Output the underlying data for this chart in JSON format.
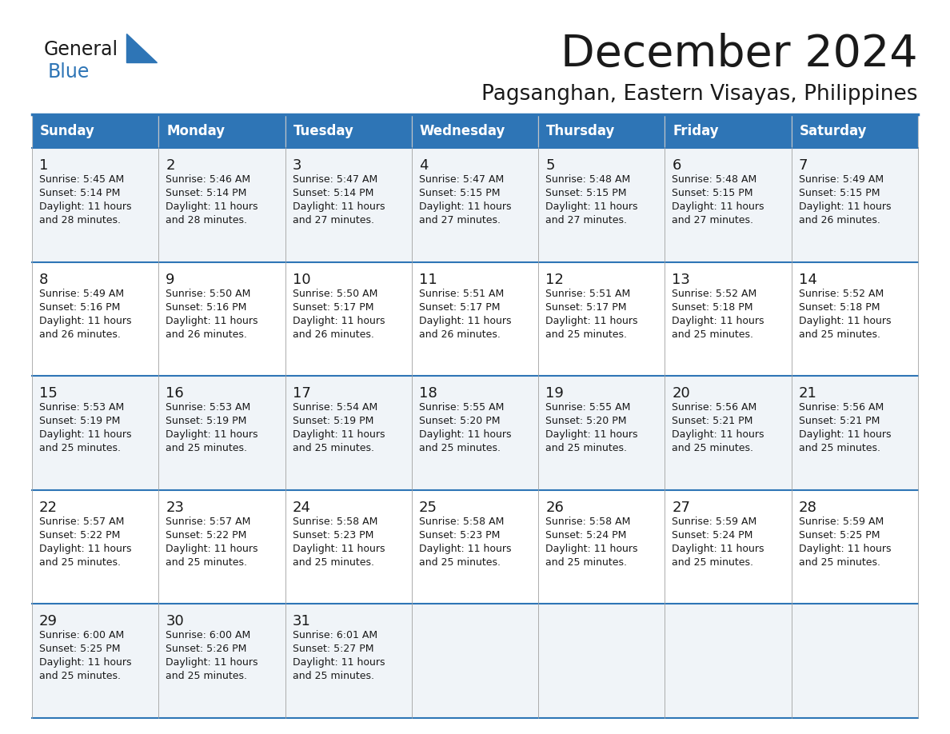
{
  "title": "December 2024",
  "subtitle": "Pagsanghan, Eastern Visayas, Philippines",
  "header_color": "#2E75B6",
  "header_text_color": "#FFFFFF",
  "text_color": "#1a1a1a",
  "days_of_week": [
    "Sunday",
    "Monday",
    "Tuesday",
    "Wednesday",
    "Thursday",
    "Friday",
    "Saturday"
  ],
  "logo_general_color": "#1a1a1a",
  "logo_blue_color": "#2E75B6",
  "calendar_data": [
    [
      {
        "day": "1",
        "sunrise": "5:45 AM",
        "sunset": "5:14 PM",
        "daylight_h": "11 hours",
        "daylight_m": "and 28 minutes."
      },
      {
        "day": "2",
        "sunrise": "5:46 AM",
        "sunset": "5:14 PM",
        "daylight_h": "11 hours",
        "daylight_m": "and 28 minutes."
      },
      {
        "day": "3",
        "sunrise": "5:47 AM",
        "sunset": "5:14 PM",
        "daylight_h": "11 hours",
        "daylight_m": "and 27 minutes."
      },
      {
        "day": "4",
        "sunrise": "5:47 AM",
        "sunset": "5:15 PM",
        "daylight_h": "11 hours",
        "daylight_m": "and 27 minutes."
      },
      {
        "day": "5",
        "sunrise": "5:48 AM",
        "sunset": "5:15 PM",
        "daylight_h": "11 hours",
        "daylight_m": "and 27 minutes."
      },
      {
        "day": "6",
        "sunrise": "5:48 AM",
        "sunset": "5:15 PM",
        "daylight_h": "11 hours",
        "daylight_m": "and 27 minutes."
      },
      {
        "day": "7",
        "sunrise": "5:49 AM",
        "sunset": "5:15 PM",
        "daylight_h": "11 hours",
        "daylight_m": "and 26 minutes."
      }
    ],
    [
      {
        "day": "8",
        "sunrise": "5:49 AM",
        "sunset": "5:16 PM",
        "daylight_h": "11 hours",
        "daylight_m": "and 26 minutes."
      },
      {
        "day": "9",
        "sunrise": "5:50 AM",
        "sunset": "5:16 PM",
        "daylight_h": "11 hours",
        "daylight_m": "and 26 minutes."
      },
      {
        "day": "10",
        "sunrise": "5:50 AM",
        "sunset": "5:17 PM",
        "daylight_h": "11 hours",
        "daylight_m": "and 26 minutes."
      },
      {
        "day": "11",
        "sunrise": "5:51 AM",
        "sunset": "5:17 PM",
        "daylight_h": "11 hours",
        "daylight_m": "and 26 minutes."
      },
      {
        "day": "12",
        "sunrise": "5:51 AM",
        "sunset": "5:17 PM",
        "daylight_h": "11 hours",
        "daylight_m": "and 25 minutes."
      },
      {
        "day": "13",
        "sunrise": "5:52 AM",
        "sunset": "5:18 PM",
        "daylight_h": "11 hours",
        "daylight_m": "and 25 minutes."
      },
      {
        "day": "14",
        "sunrise": "5:52 AM",
        "sunset": "5:18 PM",
        "daylight_h": "11 hours",
        "daylight_m": "and 25 minutes."
      }
    ],
    [
      {
        "day": "15",
        "sunrise": "5:53 AM",
        "sunset": "5:19 PM",
        "daylight_h": "11 hours",
        "daylight_m": "and 25 minutes."
      },
      {
        "day": "16",
        "sunrise": "5:53 AM",
        "sunset": "5:19 PM",
        "daylight_h": "11 hours",
        "daylight_m": "and 25 minutes."
      },
      {
        "day": "17",
        "sunrise": "5:54 AM",
        "sunset": "5:19 PM",
        "daylight_h": "11 hours",
        "daylight_m": "and 25 minutes."
      },
      {
        "day": "18",
        "sunrise": "5:55 AM",
        "sunset": "5:20 PM",
        "daylight_h": "11 hours",
        "daylight_m": "and 25 minutes."
      },
      {
        "day": "19",
        "sunrise": "5:55 AM",
        "sunset": "5:20 PM",
        "daylight_h": "11 hours",
        "daylight_m": "and 25 minutes."
      },
      {
        "day": "20",
        "sunrise": "5:56 AM",
        "sunset": "5:21 PM",
        "daylight_h": "11 hours",
        "daylight_m": "and 25 minutes."
      },
      {
        "day": "21",
        "sunrise": "5:56 AM",
        "sunset": "5:21 PM",
        "daylight_h": "11 hours",
        "daylight_m": "and 25 minutes."
      }
    ],
    [
      {
        "day": "22",
        "sunrise": "5:57 AM",
        "sunset": "5:22 PM",
        "daylight_h": "11 hours",
        "daylight_m": "and 25 minutes."
      },
      {
        "day": "23",
        "sunrise": "5:57 AM",
        "sunset": "5:22 PM",
        "daylight_h": "11 hours",
        "daylight_m": "and 25 minutes."
      },
      {
        "day": "24",
        "sunrise": "5:58 AM",
        "sunset": "5:23 PM",
        "daylight_h": "11 hours",
        "daylight_m": "and 25 minutes."
      },
      {
        "day": "25",
        "sunrise": "5:58 AM",
        "sunset": "5:23 PM",
        "daylight_h": "11 hours",
        "daylight_m": "and 25 minutes."
      },
      {
        "day": "26",
        "sunrise": "5:58 AM",
        "sunset": "5:24 PM",
        "daylight_h": "11 hours",
        "daylight_m": "and 25 minutes."
      },
      {
        "day": "27",
        "sunrise": "5:59 AM",
        "sunset": "5:24 PM",
        "daylight_h": "11 hours",
        "daylight_m": "and 25 minutes."
      },
      {
        "day": "28",
        "sunrise": "5:59 AM",
        "sunset": "5:25 PM",
        "daylight_h": "11 hours",
        "daylight_m": "and 25 minutes."
      }
    ],
    [
      {
        "day": "29",
        "sunrise": "6:00 AM",
        "sunset": "5:25 PM",
        "daylight_h": "11 hours",
        "daylight_m": "and 25 minutes."
      },
      {
        "day": "30",
        "sunrise": "6:00 AM",
        "sunset": "5:26 PM",
        "daylight_h": "11 hours",
        "daylight_m": "and 25 minutes."
      },
      {
        "day": "31",
        "sunrise": "6:01 AM",
        "sunset": "5:27 PM",
        "daylight_h": "11 hours",
        "daylight_m": "and 25 minutes."
      },
      null,
      null,
      null,
      null
    ]
  ]
}
